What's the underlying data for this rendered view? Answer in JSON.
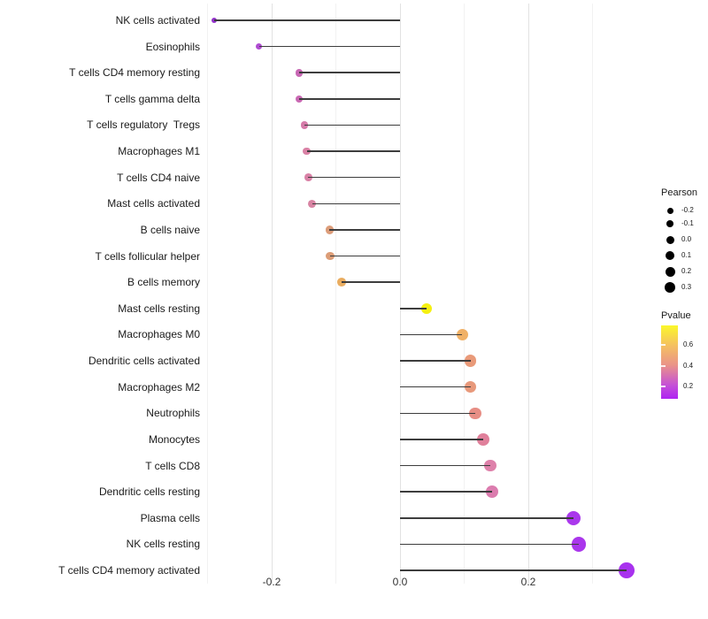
{
  "chart_data": {
    "type": "scatter",
    "subtype": "lollipop",
    "orientation": "horizontal",
    "title": "",
    "xlabel": "",
    "ylabel": "",
    "categories": [
      "NK cells activated",
      "Eosinophils",
      "T cells CD4 memory resting",
      "T cells gamma delta",
      "T cells regulatory  Tregs",
      "Macrophages M1",
      "T cells CD4 naive",
      "Mast cells activated",
      "B cells naive",
      "T cells follicular helper",
      "B cells memory",
      "Mast cells resting",
      "Macrophages M0",
      "Dendritic cells activated",
      "Macrophages M2",
      "Neutrophils",
      "Monocytes",
      "T cells CD8",
      "Dendritic cells resting",
      "Plasma cells",
      "NK cells resting",
      "T cells CD4 memory activated"
    ],
    "series": [
      {
        "name": "Pearson",
        "values": [
          -0.29,
          -0.22,
          -0.157,
          -0.157,
          -0.149,
          -0.145,
          -0.143,
          -0.137,
          -0.11,
          -0.109,
          -0.091,
          0.041,
          0.097,
          0.11,
          0.11,
          0.117,
          0.13,
          0.141,
          0.143,
          0.27,
          0.279,
          0.353
        ]
      }
    ],
    "point_colors": [
      "#9333CC",
      "#B04CD2",
      "#C867B4",
      "#C968B3",
      "#D67BA9",
      "#D981A5",
      "#D981A6",
      "#D884A3",
      "#DC9C79",
      "#DC9D77",
      "#EAAD60",
      "#F5F011",
      "#F0B167",
      "#E99A79",
      "#E8997B",
      "#E78E85",
      "#E0809B",
      "#DE81AA",
      "#DB7CAE",
      "#AA38EC",
      "#AA36EC",
      "#A832EE"
    ],
    "pvalue_approx": [
      0.1,
      0.15,
      0.22,
      0.22,
      0.26,
      0.27,
      0.27,
      0.28,
      0.38,
      0.38,
      0.45,
      0.72,
      0.47,
      0.4,
      0.4,
      0.37,
      0.31,
      0.28,
      0.27,
      0.07,
      0.07,
      0.06
    ],
    "baseline": 0,
    "xlim": [
      -0.303,
      0.383
    ],
    "x_axis": {
      "ticks": [
        {
          "value": -0.2,
          "label": "-0.2"
        },
        {
          "value": 0.0,
          "label": "0.0"
        },
        {
          "value": 0.2,
          "label": "0.2"
        }
      ],
      "minor_gridlines": [
        -0.3,
        -0.1,
        0.1,
        0.3
      ]
    },
    "grid": "vertical-only",
    "legend_position": "right"
  },
  "legends": {
    "pearson": {
      "title": "Pearson",
      "entries": [
        {
          "label": "-0.2",
          "size": 7
        },
        {
          "label": "-0.1",
          "size": 8
        },
        {
          "label": "0.0",
          "size": 9
        },
        {
          "label": "0.1",
          "size": 10
        },
        {
          "label": "0.2",
          "size": 11
        },
        {
          "label": "0.3",
          "size": 12
        }
      ]
    },
    "pvalue": {
      "title": "Pvalue",
      "tick_labels": [
        "0.6",
        "0.4",
        "0.2"
      ],
      "gradient_stops_bottom_to_top": [
        "#AF23F2",
        "#C44FD8",
        "#EA9389",
        "#F5C35F",
        "#FBF72A"
      ]
    }
  },
  "colors": {
    "segment": "#3d3d3d",
    "grid_major": "#e2e2e2",
    "grid_minor": "#f2f2f2",
    "text": "#1a1a1a",
    "background": "#ffffff"
  }
}
